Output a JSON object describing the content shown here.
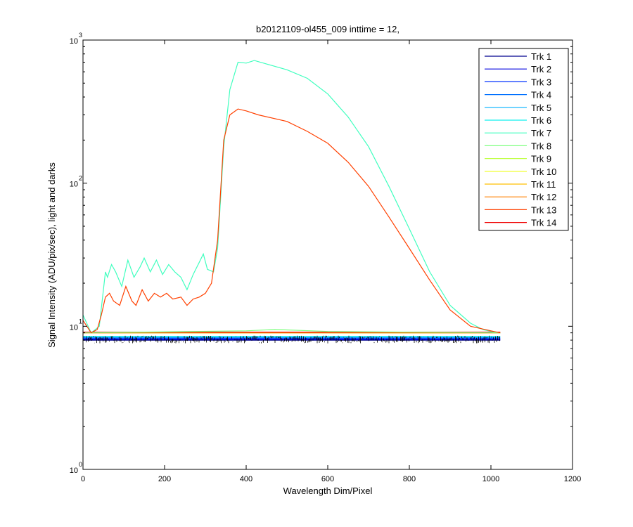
{
  "chart_data": {
    "type": "line",
    "title": "b20121109-ol455_009 inttime = 12,",
    "xlabel": "Wavelength Dim/Pixel",
    "ylabel": "Signal Intensity (ADU/pix/sec), light and darks",
    "xlim": [
      0,
      1200
    ],
    "ylim": [
      1,
      1000
    ],
    "yscale": "log",
    "grid": false,
    "legend_position": "top-right",
    "x_ticks": [
      0,
      200,
      400,
      600,
      800,
      1000,
      1200
    ],
    "y_ticks": [
      {
        "value": 1,
        "base": "10",
        "exp": "0"
      },
      {
        "value": 10,
        "base": "10",
        "exp": "1"
      },
      {
        "value": 100,
        "base": "10",
        "exp": "2"
      },
      {
        "value": 1000,
        "base": "10",
        "exp": "3"
      }
    ],
    "series": [
      {
        "name": "Trk 1",
        "color": "#00008f",
        "values": [
          [
            0,
            8.0
          ],
          [
            1023,
            8.0
          ]
        ]
      },
      {
        "name": "Trk 2",
        "color": "#0000df",
        "values": [
          [
            0,
            8.1
          ],
          [
            1023,
            8.1
          ]
        ]
      },
      {
        "name": "Trk 3",
        "color": "#0030ff",
        "values": [
          [
            0,
            8.2
          ],
          [
            1023,
            8.2
          ]
        ]
      },
      {
        "name": "Trk 4",
        "color": "#0070ff",
        "values": [
          [
            0,
            8.3
          ],
          [
            1023,
            8.3
          ]
        ]
      },
      {
        "name": "Trk 5",
        "color": "#00b0ff",
        "values": [
          [
            0,
            8.4
          ],
          [
            1023,
            8.4
          ]
        ]
      },
      {
        "name": "Trk 6",
        "color": "#10f0ef",
        "values": [
          [
            0,
            8.5
          ],
          [
            1023,
            8.5
          ]
        ]
      },
      {
        "name": "Trk 7",
        "color": "#40ffbf",
        "values": [
          [
            0,
            12.0
          ],
          [
            20,
            9.0
          ],
          [
            40,
            10.0
          ],
          [
            55,
            24
          ],
          [
            60,
            22
          ],
          [
            70,
            27
          ],
          [
            80,
            24
          ],
          [
            95,
            19
          ],
          [
            110,
            29
          ],
          [
            125,
            22
          ],
          [
            140,
            26
          ],
          [
            150,
            30
          ],
          [
            165,
            24
          ],
          [
            180,
            29
          ],
          [
            195,
            23
          ],
          [
            210,
            27
          ],
          [
            225,
            24
          ],
          [
            240,
            22
          ],
          [
            255,
            18
          ],
          [
            270,
            23
          ],
          [
            285,
            28
          ],
          [
            295,
            32
          ],
          [
            305,
            25
          ],
          [
            320,
            24
          ],
          [
            330,
            35
          ],
          [
            345,
            180
          ],
          [
            360,
            450
          ],
          [
            380,
            700
          ],
          [
            400,
            690
          ],
          [
            420,
            720
          ],
          [
            450,
            680
          ],
          [
            500,
            620
          ],
          [
            550,
            540
          ],
          [
            600,
            420
          ],
          [
            650,
            290
          ],
          [
            700,
            180
          ],
          [
            750,
            95
          ],
          [
            800,
            48
          ],
          [
            850,
            24
          ],
          [
            900,
            14
          ],
          [
            950,
            10.5
          ],
          [
            980,
            9.5
          ],
          [
            1000,
            9.2
          ],
          [
            1023,
            9.0
          ]
        ]
      },
      {
        "name": "Trk 8",
        "color": "#7fff80",
        "values": [
          [
            0,
            9.0
          ],
          [
            400,
            9.3
          ],
          [
            470,
            9.5
          ],
          [
            600,
            9.2
          ],
          [
            1023,
            9.0
          ]
        ]
      },
      {
        "name": "Trk 9",
        "color": "#bfff40",
        "values": [
          [
            0,
            9.0
          ],
          [
            1023,
            9.0
          ]
        ]
      },
      {
        "name": "Trk 10",
        "color": "#efff10",
        "values": [
          [
            0,
            9.0
          ],
          [
            1023,
            9.0
          ]
        ]
      },
      {
        "name": "Trk 11",
        "color": "#ffbf00",
        "values": [
          [
            0,
            9.0
          ],
          [
            1023,
            9.0
          ]
        ]
      },
      {
        "name": "Trk 12",
        "color": "#ff8000",
        "values": [
          [
            0,
            9.0
          ],
          [
            1023,
            9.0
          ]
        ]
      },
      {
        "name": "Trk 13",
        "color": "#ff4000",
        "values": [
          [
            0,
            11.0
          ],
          [
            20,
            9.0
          ],
          [
            35,
            9.5
          ],
          [
            45,
            12
          ],
          [
            55,
            16
          ],
          [
            65,
            17
          ],
          [
            75,
            15
          ],
          [
            90,
            14
          ],
          [
            105,
            19
          ],
          [
            120,
            15
          ],
          [
            130,
            14
          ],
          [
            145,
            18
          ],
          [
            160,
            15
          ],
          [
            175,
            17
          ],
          [
            190,
            16
          ],
          [
            205,
            17
          ],
          [
            220,
            15.5
          ],
          [
            240,
            16
          ],
          [
            255,
            14
          ],
          [
            270,
            15.5
          ],
          [
            285,
            16
          ],
          [
            300,
            17
          ],
          [
            315,
            20
          ],
          [
            330,
            40
          ],
          [
            345,
            200
          ],
          [
            360,
            300
          ],
          [
            380,
            330
          ],
          [
            400,
            320
          ],
          [
            430,
            300
          ],
          [
            500,
            270
          ],
          [
            550,
            230
          ],
          [
            600,
            190
          ],
          [
            650,
            140
          ],
          [
            700,
            95
          ],
          [
            750,
            58
          ],
          [
            800,
            35
          ],
          [
            850,
            21
          ],
          [
            900,
            13
          ],
          [
            950,
            10
          ],
          [
            1000,
            9.3
          ],
          [
            1023,
            9.0
          ]
        ]
      },
      {
        "name": "Trk 14",
        "color": "#ef0000",
        "values": [
          [
            0,
            9.1
          ],
          [
            1023,
            9.1
          ]
        ]
      }
    ]
  }
}
